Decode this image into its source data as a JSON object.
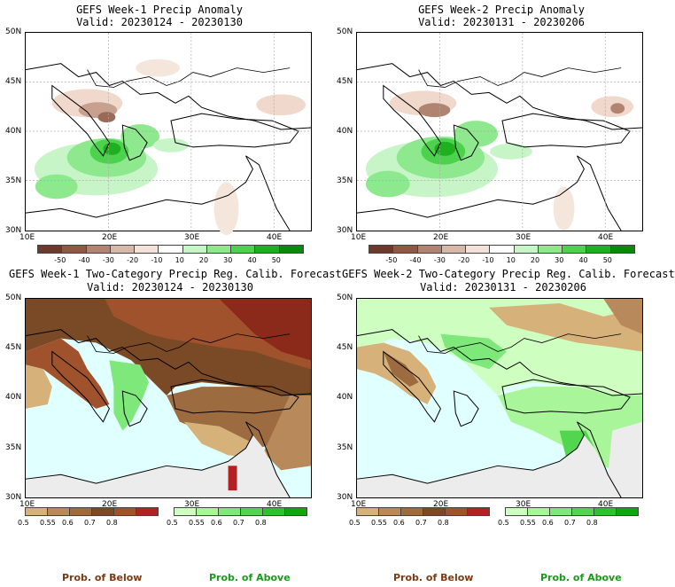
{
  "panels": [
    {
      "title": "GEFS Week-1 Precip Anomaly",
      "valid": "Valid: 20230124 - 20230130",
      "lat_labels": [
        "50N",
        "45N",
        "40N",
        "35N",
        "30N"
      ],
      "lon_labels": [
        "10E",
        "20E",
        "30E",
        "40E"
      ]
    },
    {
      "title": "GEFS Week-2 Precip Anomaly",
      "valid": "Valid: 20230131 - 20230206",
      "lat_labels": [
        "50N",
        "45N",
        "40N",
        "35N",
        "30N"
      ],
      "lon_labels": [
        "10E",
        "20E",
        "30E",
        "40E"
      ]
    },
    {
      "title": "GEFS Week-1 Two-Category Precip Reg. Calib. Forecast",
      "valid": "Valid: 20230124 - 20230130",
      "lat_labels": [
        "50N",
        "45N",
        "40N",
        "35N",
        "30N"
      ],
      "lon_labels": [
        "10E",
        "20E",
        "30E",
        "40E"
      ]
    },
    {
      "title": "GEFS Week-2 Two-Category Precip Reg. Calib. Forecast",
      "valid": "Valid: 20230131 - 20230206",
      "lat_labels": [
        "50N",
        "45N",
        "40N",
        "35N",
        "30N"
      ],
      "lon_labels": [
        "10E",
        "20E",
        "30E",
        "40E"
      ]
    }
  ],
  "anomaly_colorbar": {
    "labels": [
      "-50",
      "-40",
      "-30",
      "-20",
      "-10",
      "10",
      "20",
      "30",
      "40",
      "50"
    ],
    "colors": [
      "#6b3a2a",
      "#8c5a44",
      "#b08470",
      "#d8b8a8",
      "#f2e2d8",
      "#ffffff",
      "#c8f5c8",
      "#8ee88e",
      "#4cd24c",
      "#1fb01f",
      "#0a8a0a"
    ]
  },
  "prob_below_colorbar": {
    "labels": [
      "0.5",
      "0.55",
      "0.6",
      "0.7",
      "0.8"
    ],
    "colors": [
      "#d6b27a",
      "#b8895a",
      "#9c6b40",
      "#7a4a26",
      "#a0522d",
      "#b22222"
    ],
    "caption": "Prob. of Below",
    "caption_color": "#7a3a14"
  },
  "prob_above_colorbar": {
    "labels": [
      "0.5",
      "0.55",
      "0.6",
      "0.7",
      "0.8"
    ],
    "colors": [
      "#cfffc0",
      "#a8f59a",
      "#7ee87a",
      "#52d64f",
      "#2cc22a",
      "#0ea80e"
    ],
    "caption": "Prob. of Above",
    "caption_color": "#1a9a1a"
  },
  "map_colors": {
    "sea": "#e0ffff",
    "land": "#ffffff",
    "coast": "#000000",
    "grid": "#aaaaaa"
  }
}
